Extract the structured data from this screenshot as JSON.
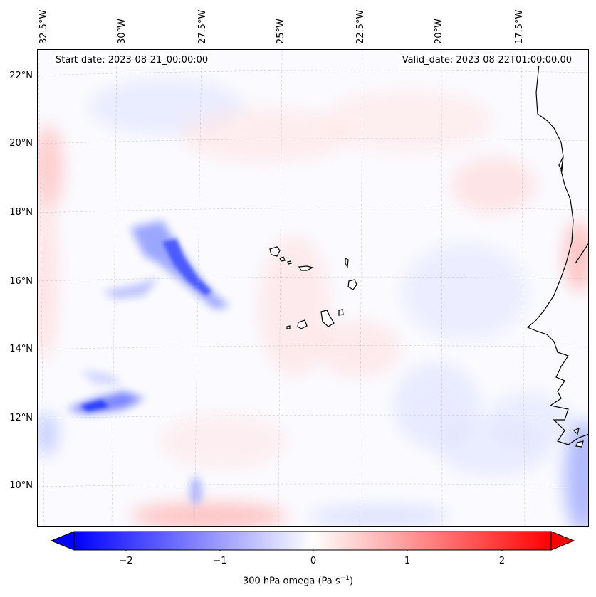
{
  "longitude_labels": [
    "32.5°W",
    "30°W",
    "27.5°W",
    "25°W",
    "22.5°W",
    "20°W",
    "17.5°W"
  ],
  "latitude_labels": [
    "22°N",
    "20°N",
    "18°N",
    "16°N",
    "14°N",
    "12°N",
    "10°N"
  ],
  "start_date": "Start date: 2023-08-21_00:00:00",
  "valid_date": "Valid_date: 2023-08-22T01:00:00.00",
  "colorbar": {
    "ticks": [
      "−2",
      "−1",
      "0",
      "1",
      "2"
    ],
    "label_main": "300 hPa omega (Pa s",
    "label_sup": "−1",
    "label_end": ")",
    "colors": {
      "negative": "#0000ff",
      "zero": "#ffffff",
      "positive": "#ff0000"
    }
  }
}
